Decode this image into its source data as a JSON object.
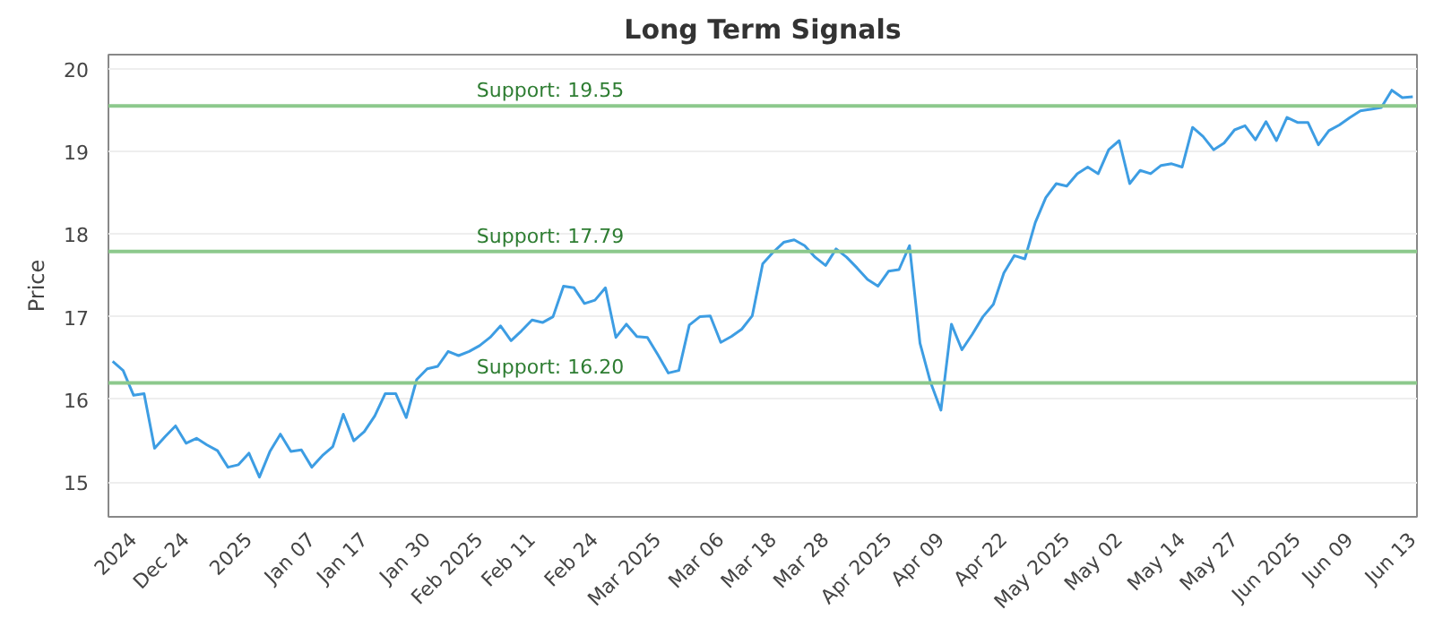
{
  "chart_data": {
    "type": "line",
    "title": "Long Term Signals",
    "ylabel": "Price",
    "categories": [
      null,
      null,
      "2024",
      null,
      null,
      null,
      null,
      "Dec 24",
      null,
      null,
      null,
      null,
      null,
      "2025",
      null,
      null,
      null,
      null,
      null,
      "Jan 07",
      null,
      null,
      null,
      null,
      "Jan 17",
      null,
      null,
      null,
      null,
      null,
      "Jan 30",
      null,
      null,
      null,
      null,
      "Feb 2025",
      null,
      null,
      null,
      null,
      "Feb 11",
      null,
      null,
      null,
      null,
      null,
      "Feb 24",
      null,
      null,
      null,
      null,
      null,
      "Mar 2025",
      null,
      null,
      null,
      null,
      null,
      "Mar 06",
      null,
      null,
      null,
      null,
      "Mar 18",
      null,
      null,
      null,
      null,
      "Mar 28",
      null,
      null,
      null,
      null,
      null,
      "Apr 2025",
      null,
      null,
      null,
      null,
      "Apr 09",
      null,
      null,
      null,
      null,
      null,
      "Apr 22",
      null,
      null,
      null,
      null,
      null,
      "May 2025",
      null,
      null,
      null,
      null,
      "May 02",
      null,
      null,
      null,
      null,
      null,
      "May 14",
      null,
      null,
      null,
      null,
      "May 27",
      null,
      null,
      null,
      null,
      null,
      "Jun 2025",
      null,
      null,
      null,
      null,
      "Jun 09",
      null,
      null,
      null,
      null,
      null,
      "Jun 13"
    ],
    "series": [
      {
        "color": "#3d9de3",
        "values": [
          16.46,
          16.35,
          16.05,
          16.07,
          15.41,
          15.55,
          15.68,
          15.47,
          15.53,
          15.45,
          15.38,
          15.18,
          15.21,
          15.35,
          15.06,
          15.37,
          15.58,
          15.37,
          15.39,
          15.18,
          15.32,
          15.43,
          15.82,
          15.5,
          15.61,
          15.8,
          16.07,
          16.07,
          15.78,
          16.24,
          16.37,
          16.4,
          16.58,
          16.53,
          16.58,
          16.65,
          16.75,
          16.89,
          16.71,
          16.83,
          16.96,
          16.93,
          17.0,
          17.37,
          17.35,
          17.16,
          17.2,
          17.35,
          16.75,
          16.91,
          16.76,
          16.75,
          16.54,
          16.32,
          16.35,
          16.9,
          17.0,
          17.01,
          16.69,
          16.76,
          16.85,
          17.01,
          17.64,
          17.78,
          17.9,
          17.93,
          17.86,
          17.72,
          17.62,
          17.82,
          17.72,
          17.59,
          17.45,
          17.37,
          17.55,
          17.57,
          17.86,
          16.68,
          16.21,
          15.87,
          16.91,
          16.6,
          16.79,
          17.0,
          17.15,
          17.53,
          17.74,
          17.7,
          18.14,
          18.44,
          18.61,
          18.58,
          18.73,
          18.81,
          18.73,
          19.02,
          19.13,
          18.61,
          18.77,
          18.73,
          18.83,
          18.85,
          18.81,
          19.29,
          19.18,
          19.02,
          19.1,
          19.26,
          19.31,
          19.14,
          19.36,
          19.13,
          19.41,
          19.35,
          19.35,
          19.08,
          19.25,
          19.32,
          19.41,
          19.49,
          19.51,
          19.53,
          19.74,
          19.65,
          19.66
        ]
      }
    ],
    "ylim": [
      14.58,
      20.17
    ],
    "yticks": [
      15,
      16,
      17,
      18,
      19,
      20
    ],
    "grid": "y",
    "ref_lines": [
      {
        "axis": "y",
        "value": 19.55,
        "label": "Support: 19.55",
        "color": "#8cc98c"
      },
      {
        "axis": "y",
        "value": 17.79,
        "label": "Support: 17.79",
        "color": "#8cc98c"
      },
      {
        "axis": "y",
        "value": 16.2,
        "label": "Support: 16.20",
        "color": "#8cc98c"
      }
    ]
  }
}
